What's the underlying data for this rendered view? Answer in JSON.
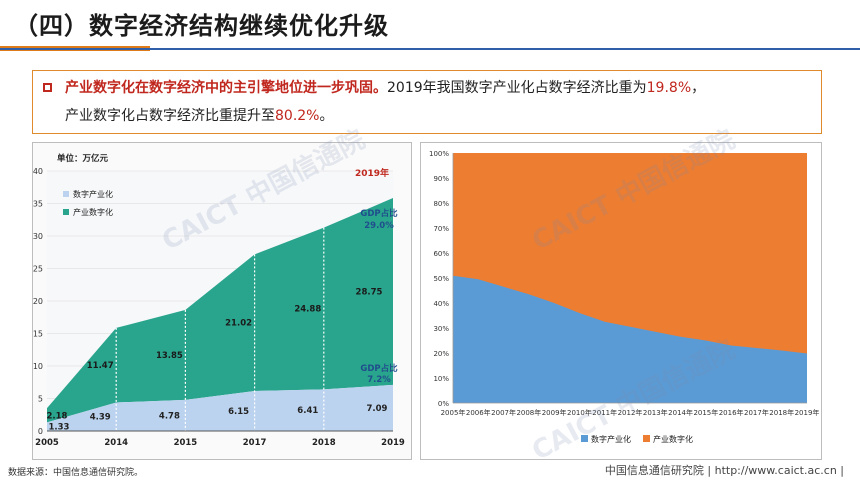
{
  "slide": {
    "title": "（四）数字经济结构继续优化升级",
    "callout": {
      "lead_bold": "产业数字化在数字经济中的主引擎地位进一步巩固。",
      "text_a": "2019年我国数字产业化占数字经济比重为",
      "val_a": "19.8%",
      "text_a_end": "，",
      "text_b": "产业数字化占数字经济比重提升至",
      "val_b": "80.2%",
      "text_b_end": "。"
    },
    "source": "数据来源：中国信息通信研究院。",
    "footer_org": "中国信息通信研究院  |  http://www.caict.ac.cn  |",
    "watermark": "CAICT 中国信通院",
    "colors": {
      "digital_industrialization": "#bcd3ef",
      "industrial_digitization": "#2aa58d",
      "share_blue": "#5b9bd5",
      "share_orange": "#ed7d31",
      "accent_red": "#c0271e"
    }
  },
  "chart_data": [
    {
      "type": "area",
      "title": "",
      "unit_label": "单位：万亿元",
      "year_badge": "2019年",
      "categories": [
        "2005",
        "2014",
        "2015",
        "2017",
        "2018",
        "2019"
      ],
      "series": [
        {
          "name": "数字产业化",
          "values": [
            1.33,
            4.39,
            4.78,
            6.15,
            6.41,
            7.09
          ]
        },
        {
          "name": "产业数字化",
          "values": [
            2.18,
            11.47,
            13.85,
            21.02,
            24.88,
            28.75
          ]
        }
      ],
      "ylim": [
        0,
        40
      ],
      "yticks": [
        0,
        5,
        10,
        15,
        20,
        25,
        30,
        35,
        40
      ],
      "annotations": [
        {
          "text": "GDP占比",
          "value": "29.0%",
          "series": "产业数字化"
        },
        {
          "text": "GDP占比",
          "value": "7.2%",
          "series": "数字产业化"
        }
      ],
      "legend": "top-left",
      "stacked": true
    },
    {
      "type": "area",
      "title": "",
      "categories": [
        "2005年",
        "2006年",
        "2007年",
        "2008年",
        "2009年",
        "2010年",
        "2011年",
        "2012年",
        "2013年",
        "2014年",
        "2015年",
        "2016年",
        "2017年",
        "2018年",
        "2019年"
      ],
      "series": [
        {
          "name": "数字产业化",
          "values": [
            50.9,
            49.5,
            46.5,
            43.5,
            40.0,
            36.0,
            32.5,
            30.5,
            28.5,
            26.5,
            25.0,
            23.0,
            22.0,
            21.0,
            19.8
          ]
        },
        {
          "name": "产业数字化",
          "values": [
            49.1,
            50.5,
            53.5,
            56.5,
            60.0,
            64.0,
            67.5,
            69.5,
            71.5,
            73.5,
            75.0,
            77.0,
            78.0,
            79.0,
            80.2
          ]
        }
      ],
      "ylim": [
        0,
        100
      ],
      "yticks": [
        "0%",
        "10%",
        "20%",
        "30%",
        "40%",
        "50%",
        "60%",
        "70%",
        "80%",
        "90%",
        "100%"
      ],
      "legend": "bottom",
      "stacked": true
    }
  ]
}
